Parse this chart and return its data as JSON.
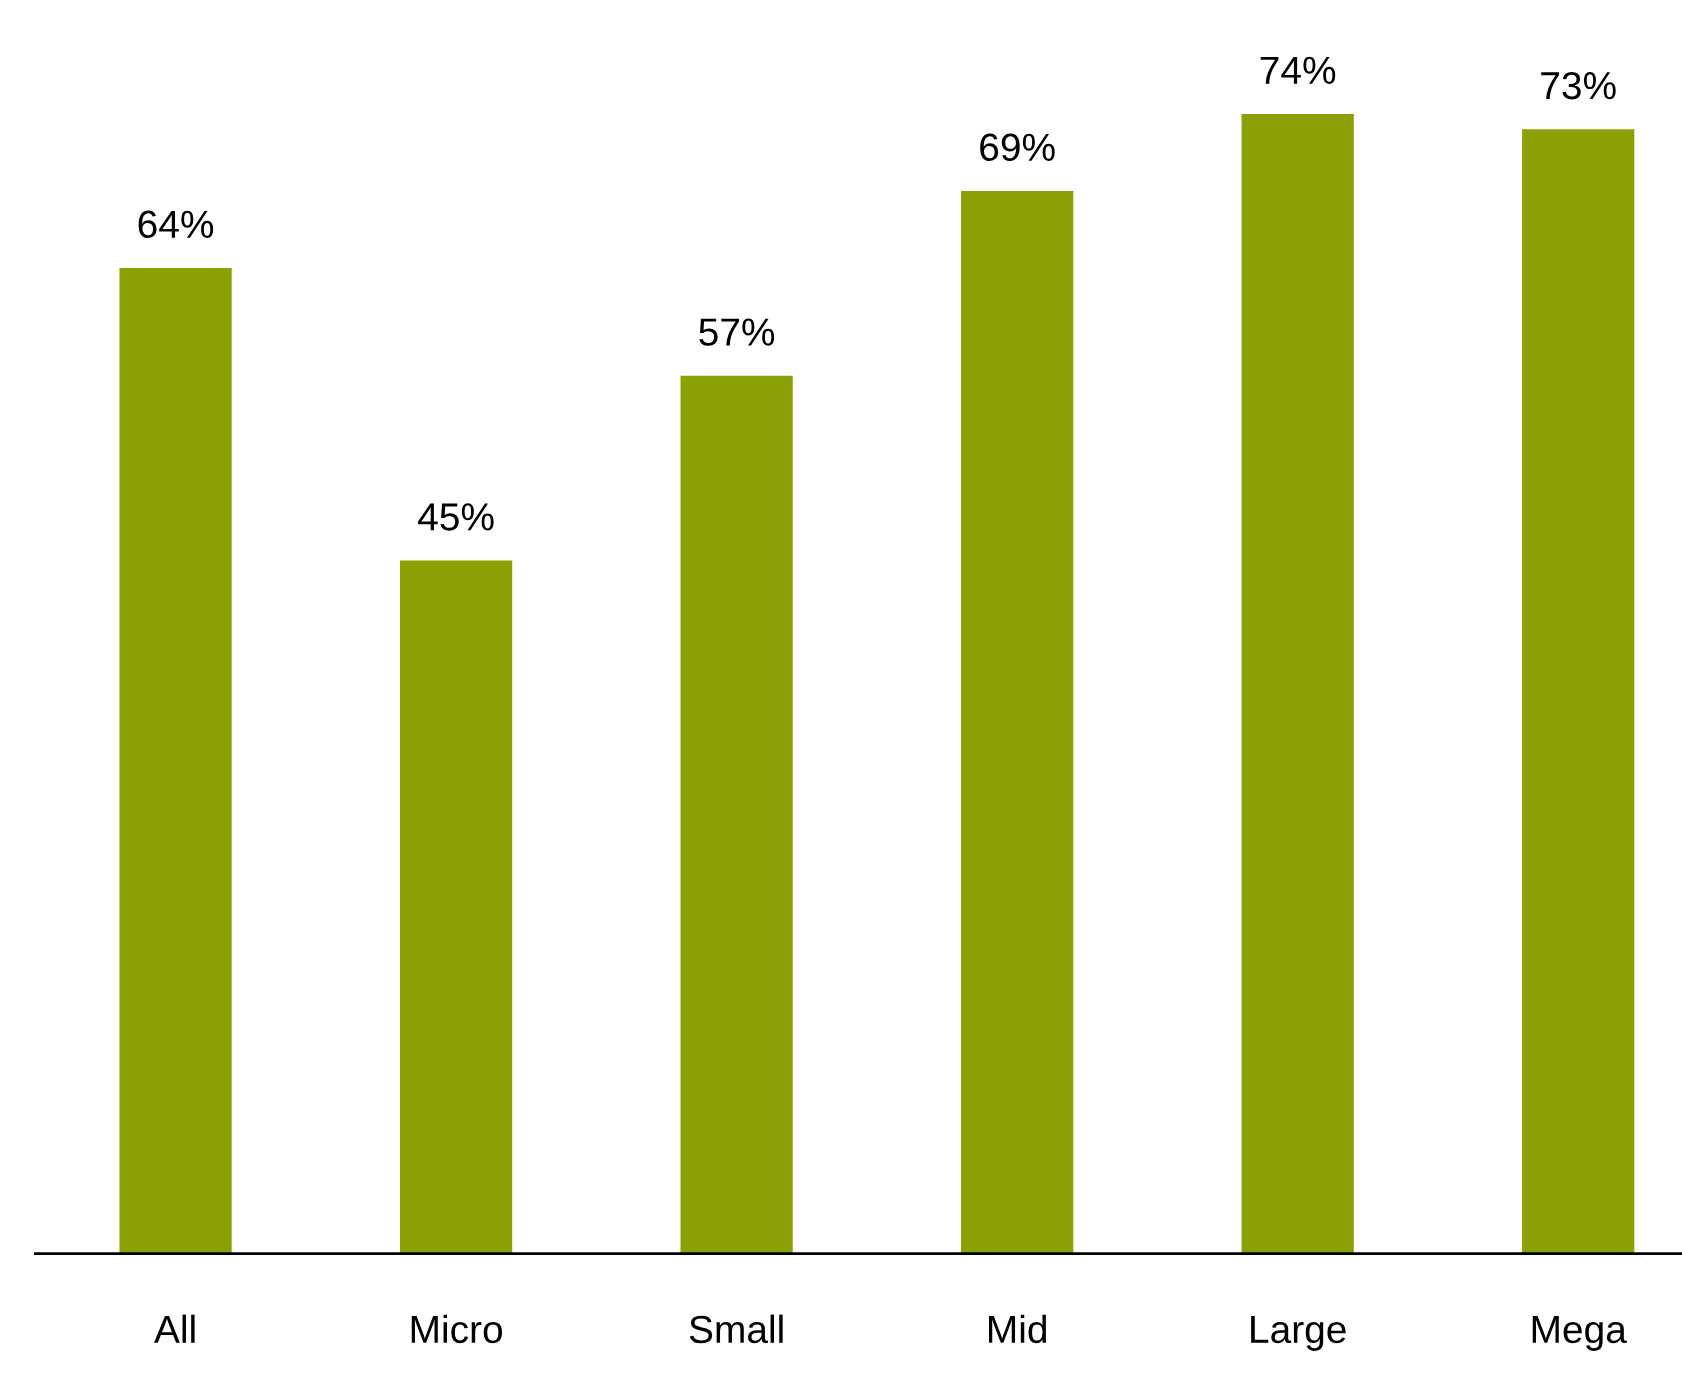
{
  "chart_data": {
    "type": "bar",
    "categories": [
      "All",
      "Micro",
      "Small",
      "Mid",
      "Large",
      "Mega"
    ],
    "values": [
      64,
      45,
      57,
      69,
      74,
      73
    ],
    "value_labels": [
      "64%",
      "45%",
      "57%",
      "69%",
      "74%",
      "73%"
    ],
    "color": "#8ba004",
    "grid": false,
    "legend": false
  }
}
